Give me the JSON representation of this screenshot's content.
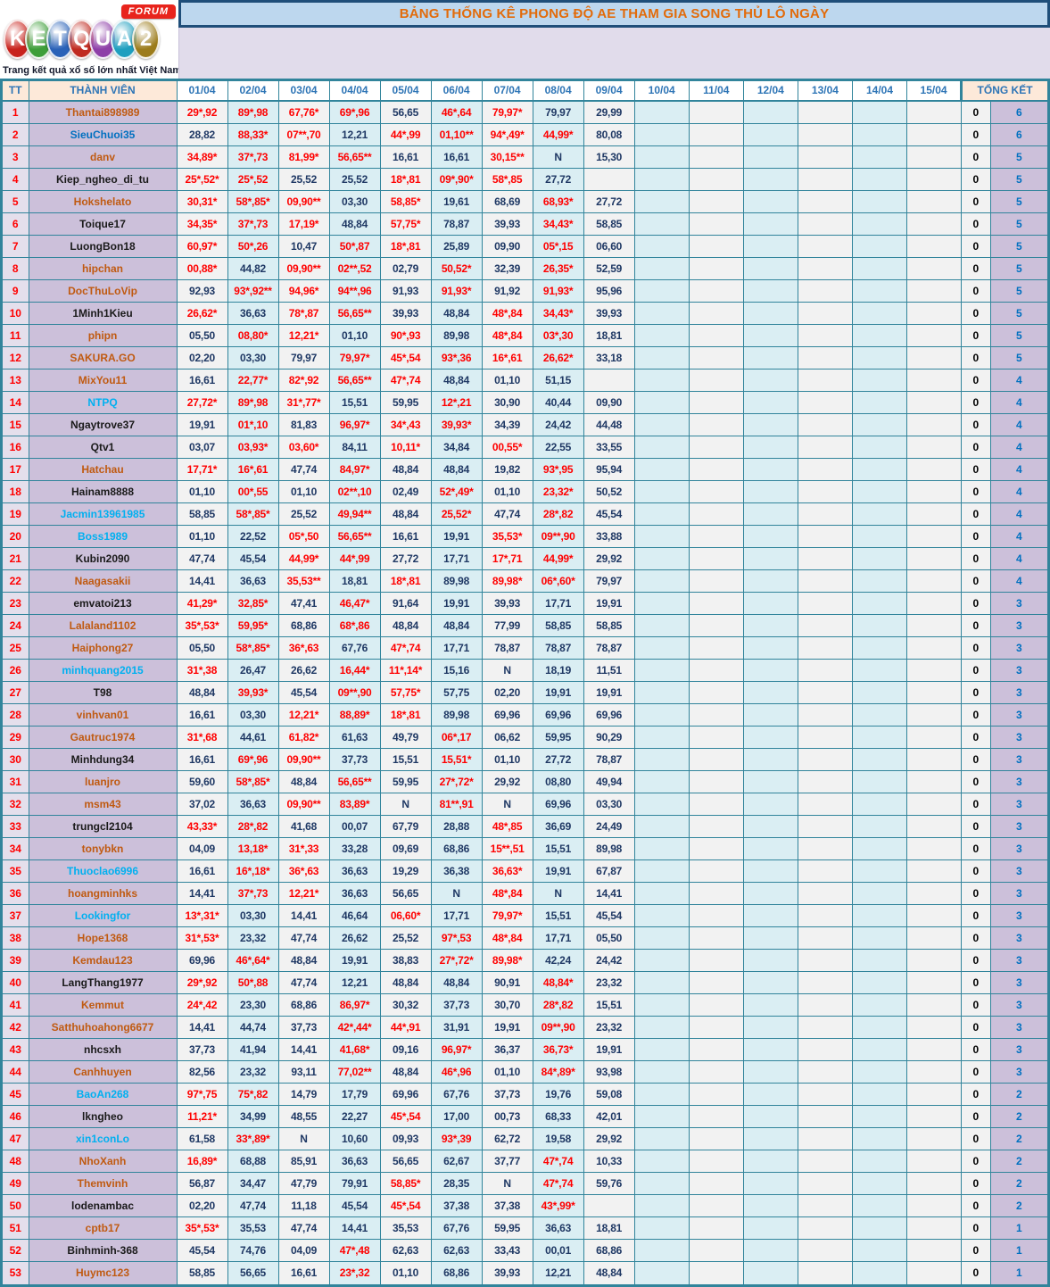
{
  "logo": {
    "forum": "FORUM",
    "tagline": "Trang kết quả xổ số lớn nhất Việt Nam",
    "letters": [
      {
        "ch": "K",
        "color": "#C8231D"
      },
      {
        "ch": "E",
        "color": "#3E9E39"
      },
      {
        "ch": "T",
        "color": "#2A62B8"
      },
      {
        "ch": "Q",
        "color": "#C02A20"
      },
      {
        "ch": "U",
        "color": "#8E3FA8"
      },
      {
        "ch": "A",
        "color": "#1F9FBF"
      },
      {
        "ch": "2",
        "color": "#9C7C1C"
      }
    ]
  },
  "title": "BẢNG THỐNG KÊ PHONG ĐỘ AE THAM GIA SONG THỦ LÔ NGÀY",
  "colors": {
    "border_teal": "#31849B",
    "title_orange": "#E26B0A",
    "title_bg": "#BDD7EE",
    "hit_red": "#FF0000",
    "value_navy": "#1F3864",
    "count_blue": "#0070C0",
    "names": {
      "o": "#C05A11",
      "b": "#0070C0",
      "c": "#00B0F0",
      "k": "#1A1A1A"
    }
  },
  "table": {
    "headers": {
      "tt": "TT",
      "member": "THÀNH VIÊN",
      "dates": [
        "01/04",
        "02/04",
        "03/04",
        "04/04",
        "05/04",
        "06/04",
        "07/04",
        "08/04",
        "09/04",
        "10/04",
        "11/04",
        "12/04",
        "13/04",
        "14/04",
        "15/04"
      ],
      "total": "TỔNG KẾT"
    },
    "rows": [
      {
        "tt": "1",
        "name": "Thantai898989",
        "c": "o",
        "v": [
          "29*,92",
          "89*,98",
          "67,76*",
          "69*,96",
          "56,65",
          "46*,64",
          "79,97*",
          "79,97",
          "29,99"
        ],
        "z": "0",
        "t": "6"
      },
      {
        "tt": "2",
        "name": "SieuChuoi35",
        "c": "b",
        "v": [
          "28,82",
          "88,33*",
          "07**,70",
          "12,21",
          "44*,99",
          "01,10**",
          "94*,49*",
          "44,99*",
          "80,08"
        ],
        "z": "0",
        "t": "6"
      },
      {
        "tt": "3",
        "name": "danv",
        "c": "o",
        "v": [
          "34,89*",
          "37*,73",
          "81,99*",
          "56,65**",
          "16,61",
          "16,61",
          "30,15**",
          "N",
          "15,30"
        ],
        "z": "0",
        "t": "5"
      },
      {
        "tt": "4",
        "name": "Kiep_ngheo_di_tu",
        "c": "k",
        "v": [
          "25*,52*",
          "25*,52",
          "25,52",
          "25,52",
          "18*,81",
          "09*,90*",
          "58*,85",
          "27,72",
          ""
        ],
        "z": "0",
        "t": "5"
      },
      {
        "tt": "5",
        "name": "Hokshelato",
        "c": "o",
        "v": [
          "30,31*",
          "58*,85*",
          "09,90**",
          "03,30",
          "58,85*",
          "19,61",
          "68,69",
          "68,93*",
          "27,72"
        ],
        "z": "0",
        "t": "5"
      },
      {
        "tt": "6",
        "name": "Toique17",
        "c": "k",
        "v": [
          "34,35*",
          "37*,73",
          "17,19*",
          "48,84",
          "57,75*",
          "78,87",
          "39,93",
          "34,43*",
          "58,85"
        ],
        "z": "0",
        "t": "5"
      },
      {
        "tt": "7",
        "name": "LuongBon18",
        "c": "k",
        "v": [
          "60,97*",
          "50*,26",
          "10,47",
          "50*,87",
          "18*,81",
          "25,89",
          "09,90",
          "05*,15",
          "06,60"
        ],
        "z": "0",
        "t": "5"
      },
      {
        "tt": "8",
        "name": "hipchan",
        "c": "o",
        "v": [
          "00,88*",
          "44,82",
          "09,90**",
          "02**,52",
          "02,79",
          "50,52*",
          "32,39",
          "26,35*",
          "52,59"
        ],
        "z": "0",
        "t": "5"
      },
      {
        "tt": "9",
        "name": "DocThuLoVip",
        "c": "o",
        "v": [
          "92,93",
          "93*,92**",
          "94,96*",
          "94**,96",
          "91,93",
          "91,93*",
          "91,92",
          "91,93*",
          "95,96"
        ],
        "z": "0",
        "t": "5"
      },
      {
        "tt": "10",
        "name": "1Minh1Kieu",
        "c": "k",
        "v": [
          "26,62*",
          "36,63",
          "78*,87",
          "56,65**",
          "39,93",
          "48,84",
          "48*,84",
          "34,43*",
          "39,93"
        ],
        "z": "0",
        "t": "5"
      },
      {
        "tt": "11",
        "name": "phipn",
        "c": "o",
        "v": [
          "05,50",
          "08,80*",
          "12,21*",
          "01,10",
          "90*,93",
          "89,98",
          "48*,84",
          "03*,30",
          "18,81"
        ],
        "z": "0",
        "t": "5"
      },
      {
        "tt": "12",
        "name": "SAKURA.GO",
        "c": "o",
        "v": [
          "02,20",
          "03,30",
          "79,97",
          "79,97*",
          "45*,54",
          "93*,36",
          "16*,61",
          "26,62*",
          "33,18"
        ],
        "z": "0",
        "t": "5"
      },
      {
        "tt": "13",
        "name": "MixYou11",
        "c": "o",
        "v": [
          "16,61",
          "22,77*",
          "82*,92",
          "56,65**",
          "47*,74",
          "48,84",
          "01,10",
          "51,15",
          ""
        ],
        "z": "0",
        "t": "4"
      },
      {
        "tt": "14",
        "name": "NTPQ",
        "c": "c",
        "v": [
          "27,72*",
          "89*,98",
          "31*,77*",
          "15,51",
          "59,95",
          "12*,21",
          "30,90",
          "40,44",
          "09,90"
        ],
        "z": "0",
        "t": "4"
      },
      {
        "tt": "15",
        "name": "Ngaytrove37",
        "c": "k",
        "v": [
          "19,91",
          "01*,10",
          "81,83",
          "96,97*",
          "34*,43",
          "39,93*",
          "34,39",
          "24,42",
          "44,48"
        ],
        "z": "0",
        "t": "4"
      },
      {
        "tt": "16",
        "name": "Qtv1",
        "c": "k",
        "v": [
          "03,07",
          "03,93*",
          "03,60*",
          "84,11",
          "10,11*",
          "34,84",
          "00,55*",
          "22,55",
          "33,55"
        ],
        "z": "0",
        "t": "4"
      },
      {
        "tt": "17",
        "name": "Hatchau",
        "c": "o",
        "v": [
          "17,71*",
          "16*,61",
          "47,74",
          "84,97*",
          "48,84",
          "48,84",
          "19,82",
          "93*,95",
          "95,94"
        ],
        "z": "0",
        "t": "4"
      },
      {
        "tt": "18",
        "name": "Hainam8888",
        "c": "k",
        "v": [
          "01,10",
          "00*,55",
          "01,10",
          "02**,10",
          "02,49",
          "52*,49*",
          "01,10",
          "23,32*",
          "50,52"
        ],
        "z": "0",
        "t": "4"
      },
      {
        "tt": "19",
        "name": "Jacmin13961985",
        "c": "c",
        "v": [
          "58,85",
          "58*,85*",
          "25,52",
          "49,94**",
          "48,84",
          "25,52*",
          "47,74",
          "28*,82",
          "45,54"
        ],
        "z": "0",
        "t": "4"
      },
      {
        "tt": "20",
        "name": "Boss1989",
        "c": "c",
        "v": [
          "01,10",
          "22,52",
          "05*,50",
          "56,65**",
          "16,61",
          "19,91",
          "35,53*",
          "09**,90",
          "33,88"
        ],
        "z": "0",
        "t": "4"
      },
      {
        "tt": "21",
        "name": "Kubin2090",
        "c": "k",
        "v": [
          "47,74",
          "45,54",
          "44,99*",
          "44*,99",
          "27,72",
          "17,71",
          "17*,71",
          "44,99*",
          "29,92"
        ],
        "z": "0",
        "t": "4"
      },
      {
        "tt": "22",
        "name": "Naagasakii",
        "c": "o",
        "v": [
          "14,41",
          "36,63",
          "35,53**",
          "18,81",
          "18*,81",
          "89,98",
          "89,98*",
          "06*,60*",
          "79,97"
        ],
        "z": "0",
        "t": "4"
      },
      {
        "tt": "23",
        "name": "emvatoi213",
        "c": "k",
        "v": [
          "41,29*",
          "32,85*",
          "47,41",
          "46,47*",
          "91,64",
          "19,91",
          "39,93",
          "17,71",
          "19,91"
        ],
        "z": "0",
        "t": "3"
      },
      {
        "tt": "24",
        "name": "Lalaland1102",
        "c": "o",
        "v": [
          "35*,53*",
          "59,95*",
          "68,86",
          "68*,86",
          "48,84",
          "48,84",
          "77,99",
          "58,85",
          "58,85"
        ],
        "z": "0",
        "t": "3"
      },
      {
        "tt": "25",
        "name": "Haiphong27",
        "c": "o",
        "v": [
          "05,50",
          "58*,85*",
          "36*,63",
          "67,76",
          "47*,74",
          "17,71",
          "78,87",
          "78,87",
          "78,87"
        ],
        "z": "0",
        "t": "3"
      },
      {
        "tt": "26",
        "name": "minhquang2015",
        "c": "c",
        "v": [
          "31*,38",
          "26,47",
          "26,62",
          "16,44*",
          "11*,14*",
          "15,16",
          "N",
          "18,19",
          "11,51"
        ],
        "z": "0",
        "t": "3"
      },
      {
        "tt": "27",
        "name": "T98",
        "c": "k",
        "v": [
          "48,84",
          "39,93*",
          "45,54",
          "09**,90",
          "57,75*",
          "57,75",
          "02,20",
          "19,91",
          "19,91"
        ],
        "z": "0",
        "t": "3"
      },
      {
        "tt": "28",
        "name": "vinhvan01",
        "c": "o",
        "v": [
          "16,61",
          "03,30",
          "12,21*",
          "88,89*",
          "18*,81",
          "89,98",
          "69,96",
          "69,96",
          "69,96"
        ],
        "z": "0",
        "t": "3"
      },
      {
        "tt": "29",
        "name": "Gautruc1974",
        "c": "o",
        "v": [
          "31*,68",
          "44,61",
          "61,82*",
          "61,63",
          "49,79",
          "06*,17",
          "06,62",
          "59,95",
          "90,29"
        ],
        "z": "0",
        "t": "3"
      },
      {
        "tt": "30",
        "name": "Minhdung34",
        "c": "k",
        "v": [
          "16,61",
          "69*,96",
          "09,90**",
          "37,73",
          "15,51",
          "15,51*",
          "01,10",
          "27,72",
          "78,87"
        ],
        "z": "0",
        "t": "3"
      },
      {
        "tt": "31",
        "name": "luanjro",
        "c": "o",
        "v": [
          "59,60",
          "58*,85*",
          "48,84",
          "56,65**",
          "59,95",
          "27*,72*",
          "29,92",
          "08,80",
          "49,94"
        ],
        "z": "0",
        "t": "3"
      },
      {
        "tt": "32",
        "name": "msm43",
        "c": "o",
        "v": [
          "37,02",
          "36,63",
          "09,90**",
          "83,89*",
          "N",
          "81**,91",
          "N",
          "69,96",
          "03,30"
        ],
        "z": "0",
        "t": "3"
      },
      {
        "tt": "33",
        "name": "trungcl2104",
        "c": "k",
        "v": [
          "43,33*",
          "28*,82",
          "41,68",
          "00,07",
          "67,79",
          "28,88",
          "48*,85",
          "36,69",
          "24,49"
        ],
        "z": "0",
        "t": "3"
      },
      {
        "tt": "34",
        "name": "tonybkn",
        "c": "o",
        "v": [
          "04,09",
          "13,18*",
          "31*,33",
          "33,28",
          "09,69",
          "68,86",
          "15**,51",
          "15,51",
          "89,98"
        ],
        "z": "0",
        "t": "3"
      },
      {
        "tt": "35",
        "name": "Thuoclao6996",
        "c": "c",
        "v": [
          "16,61",
          "16*,18*",
          "36*,63",
          "36,63",
          "19,29",
          "36,38",
          "36,63*",
          "19,91",
          "67,87"
        ],
        "z": "0",
        "t": "3"
      },
      {
        "tt": "36",
        "name": "hoangminhks",
        "c": "o",
        "v": [
          "14,41",
          "37*,73",
          "12,21*",
          "36,63",
          "56,65",
          "N",
          "48*,84",
          "N",
          "14,41"
        ],
        "z": "0",
        "t": "3"
      },
      {
        "tt": "37",
        "name": "Lookingfor",
        "c": "c",
        "v": [
          "13*,31*",
          "03,30",
          "14,41",
          "46,64",
          "06,60*",
          "17,71",
          "79,97*",
          "15,51",
          "45,54"
        ],
        "z": "0",
        "t": "3"
      },
      {
        "tt": "38",
        "name": "Hope1368",
        "c": "o",
        "v": [
          "31*,53*",
          "23,32",
          "47,74",
          "26,62",
          "25,52",
          "97*,53",
          "48*,84",
          "17,71",
          "05,50"
        ],
        "z": "0",
        "t": "3"
      },
      {
        "tt": "39",
        "name": "Kemdau123",
        "c": "o",
        "v": [
          "69,96",
          "46*,64*",
          "48,84",
          "19,91",
          "38,83",
          "27*,72*",
          "89,98*",
          "42,24",
          "24,42"
        ],
        "z": "0",
        "t": "3"
      },
      {
        "tt": "40",
        "name": "LangThang1977",
        "c": "k",
        "v": [
          "29*,92",
          "50*,88",
          "47,74",
          "12,21",
          "48,84",
          "48,84",
          "90,91",
          "48,84*",
          "23,32"
        ],
        "z": "0",
        "t": "3"
      },
      {
        "tt": "41",
        "name": "Kemmut",
        "c": "o",
        "v": [
          "24*,42",
          "23,30",
          "68,86",
          "86,97*",
          "30,32",
          "37,73",
          "30,70",
          "28*,82",
          "15,51"
        ],
        "z": "0",
        "t": "3"
      },
      {
        "tt": "42",
        "name": "Satthuhoahong6677",
        "c": "o",
        "v": [
          "14,41",
          "44,74",
          "37,73",
          "42*,44*",
          "44*,91",
          "31,91",
          "19,91",
          "09**,90",
          "23,32"
        ],
        "z": "0",
        "t": "3"
      },
      {
        "tt": "43",
        "name": "nhcsxh",
        "c": "k",
        "v": [
          "37,73",
          "41,94",
          "14,41",
          "41,68*",
          "09,16",
          "96,97*",
          "36,37",
          "36,73*",
          "19,91"
        ],
        "z": "0",
        "t": "3"
      },
      {
        "tt": "44",
        "name": "Canhhuyen",
        "c": "o",
        "v": [
          "82,56",
          "23,32",
          "93,11",
          "77,02**",
          "48,84",
          "46*,96",
          "01,10",
          "84*,89*",
          "93,98"
        ],
        "z": "0",
        "t": "3"
      },
      {
        "tt": "45",
        "name": "BaoAn268",
        "c": "c",
        "v": [
          "97*,75",
          "75*,82",
          "14,79",
          "17,79",
          "69,96",
          "67,76",
          "37,73",
          "19,76",
          "59,08"
        ],
        "z": "0",
        "t": "2"
      },
      {
        "tt": "46",
        "name": "lkngheo",
        "c": "k",
        "v": [
          "11,21*",
          "34,99",
          "48,55",
          "22,27",
          "45*,54",
          "17,00",
          "00,73",
          "68,33",
          "42,01"
        ],
        "z": "0",
        "t": "2"
      },
      {
        "tt": "47",
        "name": "xin1conLo",
        "c": "c",
        "v": [
          "61,58",
          "33*,89*",
          "N",
          "10,60",
          "09,93",
          "93*,39",
          "62,72",
          "19,58",
          "29,92"
        ],
        "z": "0",
        "t": "2"
      },
      {
        "tt": "48",
        "name": "NhoXanh",
        "c": "o",
        "v": [
          "16,89*",
          "68,88",
          "85,91",
          "36,63",
          "56,65",
          "62,67",
          "37,77",
          "47*,74",
          "10,33"
        ],
        "z": "0",
        "t": "2"
      },
      {
        "tt": "49",
        "name": "Themvinh",
        "c": "o",
        "v": [
          "56,87",
          "34,47",
          "47,79",
          "79,91",
          "58,85*",
          "28,35",
          "N",
          "47*,74",
          "59,76"
        ],
        "z": "0",
        "t": "2"
      },
      {
        "tt": "50",
        "name": "lodenambac",
        "c": "k",
        "v": [
          "02,20",
          "47,74",
          "11,18",
          "45,54",
          "45*,54",
          "37,38",
          "37,38",
          "43*,99*",
          ""
        ],
        "z": "0",
        "t": "2"
      },
      {
        "tt": "51",
        "name": "cptb17",
        "c": "o",
        "v": [
          "35*,53*",
          "35,53",
          "47,74",
          "14,41",
          "35,53",
          "67,76",
          "59,95",
          "36,63",
          "18,81"
        ],
        "z": "0",
        "t": "1"
      },
      {
        "tt": "52",
        "name": "Binhminh-368",
        "c": "k",
        "v": [
          "45,54",
          "74,76",
          "04,09",
          "47*,48",
          "62,63",
          "62,63",
          "33,43",
          "00,01",
          "68,86"
        ],
        "z": "0",
        "t": "1"
      },
      {
        "tt": "53",
        "name": "Huymc123",
        "c": "o",
        "v": [
          "58,85",
          "56,65",
          "16,61",
          "23*,32",
          "01,10",
          "68,86",
          "39,93",
          "12,21",
          "48,84"
        ],
        "z": "0",
        "t": "1"
      }
    ]
  }
}
